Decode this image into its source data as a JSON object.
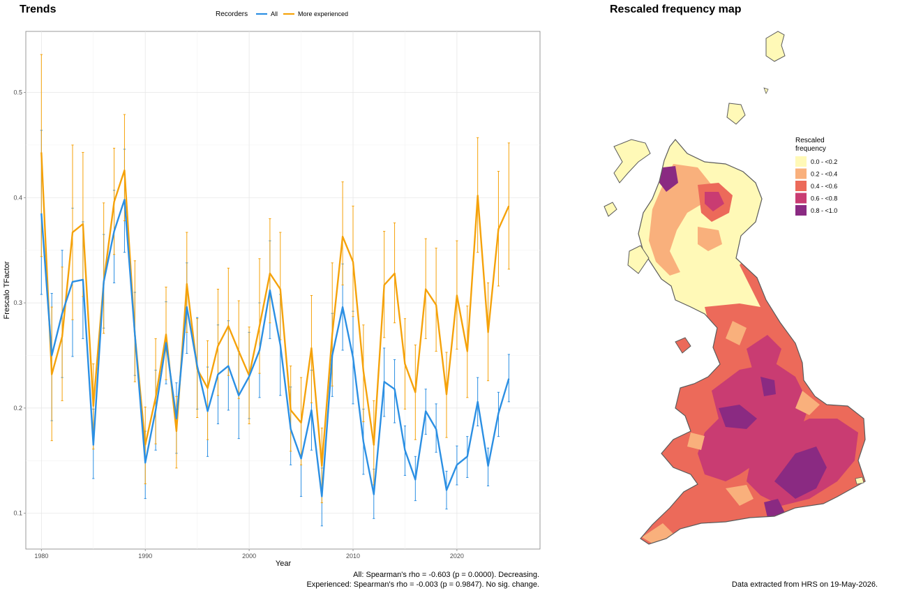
{
  "chart_data": [
    {
      "type": "line",
      "title": "Trends",
      "xlabel": "Year",
      "ylabel": "Frescalo TFactor",
      "xlim": [
        1978.5,
        2028
      ],
      "ylim": [
        0.066,
        0.558
      ],
      "x_ticks": [
        1980,
        1990,
        2000,
        2010,
        2020
      ],
      "y_ticks": [
        0.1,
        0.2,
        0.3,
        0.4,
        0.5
      ],
      "x_tick_labels": [
        "1980",
        "1990",
        "2000",
        "2010",
        "2020"
      ],
      "y_tick_labels": [
        "0.1",
        "0.2",
        "0.3",
        "0.4",
        "0.5"
      ],
      "grid": true,
      "legend": {
        "title": "Recorders",
        "position": "top"
      },
      "x": [
        1980,
        1981,
        1982,
        1983,
        1984,
        1985,
        1986,
        1987,
        1988,
        1989,
        1990,
        1991,
        1992,
        1993,
        1994,
        1995,
        1996,
        1997,
        1998,
        1999,
        2000,
        2001,
        2002,
        2003,
        2004,
        2005,
        2006,
        2007,
        2008,
        2009,
        2010,
        2011,
        2012,
        2013,
        2014,
        2015,
        2016,
        2017,
        2018,
        2019,
        2020,
        2021,
        2022,
        2023,
        2024,
        2025
      ],
      "series": [
        {
          "name": "All",
          "color": "#2b8fe3",
          "values": [
            0.385,
            0.25,
            0.29,
            0.32,
            0.322,
            0.165,
            0.32,
            0.368,
            0.398,
            0.27,
            0.148,
            0.198,
            0.262,
            0.19,
            0.296,
            0.24,
            0.197,
            0.232,
            0.24,
            0.212,
            0.23,
            0.255,
            0.312,
            0.26,
            0.18,
            0.152,
            0.198,
            0.116,
            0.25,
            0.296,
            0.248,
            0.168,
            0.118,
            0.225,
            0.218,
            0.16,
            0.132,
            0.197,
            0.18,
            0.122,
            0.146,
            0.154,
            0.206,
            0.145,
            0.195,
            0.228
          ],
          "lower": [
            0.308,
            0.188,
            0.229,
            0.249,
            0.266,
            0.133,
            0.276,
            0.319,
            0.348,
            0.231,
            0.114,
            0.16,
            0.223,
            0.157,
            0.252,
            0.199,
            0.154,
            0.185,
            0.198,
            0.171,
            0.19,
            0.21,
            0.266,
            0.212,
            0.146,
            0.116,
            0.16,
            0.088,
            0.211,
            0.255,
            0.204,
            0.137,
            0.095,
            0.192,
            0.186,
            0.136,
            0.112,
            0.175,
            0.158,
            0.104,
            0.127,
            0.134,
            0.183,
            0.126,
            0.173,
            0.206
          ],
          "upper": [
            0.464,
            0.309,
            0.35,
            0.39,
            0.377,
            0.199,
            0.365,
            0.407,
            0.446,
            0.31,
            0.178,
            0.236,
            0.301,
            0.224,
            0.338,
            0.286,
            0.239,
            0.279,
            0.283,
            0.254,
            0.272,
            0.3,
            0.359,
            0.308,
            0.22,
            0.188,
            0.236,
            0.143,
            0.29,
            0.337,
            0.292,
            0.199,
            0.142,
            0.257,
            0.246,
            0.183,
            0.154,
            0.218,
            0.204,
            0.14,
            0.164,
            0.173,
            0.229,
            0.162,
            0.215,
            0.251
          ]
        },
        {
          "name": "More experienced",
          "color": "#f5a20a",
          "values": [
            0.443,
            0.232,
            0.268,
            0.367,
            0.375,
            0.202,
            0.32,
            0.396,
            0.426,
            0.27,
            0.165,
            0.21,
            0.27,
            0.178,
            0.318,
            0.237,
            0.219,
            0.259,
            0.278,
            0.254,
            0.231,
            0.278,
            0.328,
            0.313,
            0.198,
            0.186,
            0.257,
            0.145,
            0.27,
            0.363,
            0.339,
            0.235,
            0.165,
            0.317,
            0.328,
            0.242,
            0.215,
            0.313,
            0.298,
            0.213,
            0.307,
            0.254,
            0.402,
            0.272,
            0.37,
            0.392
          ],
          "lower": [
            0.344,
            0.169,
            0.207,
            0.284,
            0.306,
            0.161,
            0.271,
            0.346,
            0.378,
            0.225,
            0.128,
            0.166,
            0.227,
            0.143,
            0.272,
            0.191,
            0.17,
            0.212,
            0.231,
            0.209,
            0.185,
            0.233,
            0.281,
            0.265,
            0.159,
            0.146,
            0.205,
            0.11,
            0.221,
            0.317,
            0.287,
            0.187,
            0.127,
            0.267,
            0.281,
            0.199,
            0.17,
            0.266,
            0.254,
            0.172,
            0.256,
            0.21,
            0.348,
            0.226,
            0.316,
            0.332
          ],
          "upper": [
            0.536,
            0.296,
            0.334,
            0.45,
            0.443,
            0.242,
            0.395,
            0.447,
            0.479,
            0.34,
            0.201,
            0.266,
            0.315,
            0.211,
            0.367,
            0.285,
            0.264,
            0.313,
            0.333,
            0.302,
            0.277,
            0.342,
            0.38,
            0.367,
            0.24,
            0.229,
            0.307,
            0.181,
            0.338,
            0.415,
            0.392,
            0.279,
            0.207,
            0.368,
            0.376,
            0.285,
            0.26,
            0.361,
            0.352,
            0.253,
            0.359,
            0.297,
            0.457,
            0.319,
            0.425,
            0.452
          ]
        }
      ],
      "annotations": [
        "All: Spearman's rho = -0.603 (p = 0.0000). Decreasing.",
        "Experienced: Spearman's rho = -0.003 (p = 0.9847). No sig. change."
      ]
    },
    {
      "type": "heatmap",
      "title": "Rescaled frequency map",
      "legend": {
        "title_lines": [
          "Rescaled",
          "frequency"
        ],
        "position": "right",
        "entries": [
          {
            "label": "0.0 - <0.2",
            "color": "#fff9b7"
          },
          {
            "label": "0.2 - <0.4",
            "color": "#f9b07c"
          },
          {
            "label": "0.4 - <0.6",
            "color": "#ec6a5a"
          },
          {
            "label": "0.6 - <0.8",
            "color": "#c93c72"
          },
          {
            "label": "0.8 - <1.0",
            "color": "#8a2a82"
          }
        ]
      },
      "footnote": "Data extracted from HRS on 19-May-2026."
    }
  ]
}
